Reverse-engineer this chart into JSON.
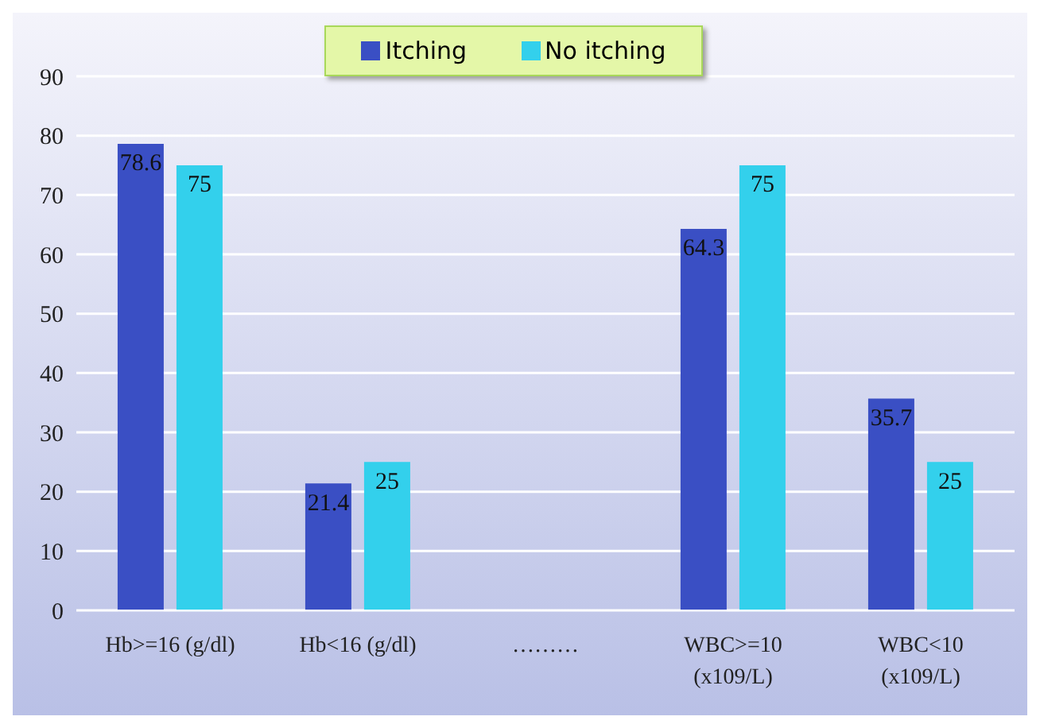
{
  "chart_data": {
    "type": "bar",
    "categories": [
      "Hb>=16 (g/dl)",
      "Hb<16 (g/dl)",
      "………",
      "WBC>=10 (x109/L)",
      "WBC<10 (x109/L)"
    ],
    "series": [
      {
        "name": "Itching",
        "color": "#3a4fc4",
        "values": [
          78.6,
          21.4,
          null,
          64.3,
          35.7
        ]
      },
      {
        "name": "No itching",
        "color": "#33d0ec",
        "values": [
          75,
          25,
          null,
          75,
          25
        ]
      }
    ],
    "ylim": [
      0,
      90
    ],
    "yticks": [
      0,
      10,
      20,
      30,
      40,
      50,
      60,
      70,
      80,
      90
    ],
    "grid": "y",
    "legend": "top",
    "data_labels": true
  }
}
